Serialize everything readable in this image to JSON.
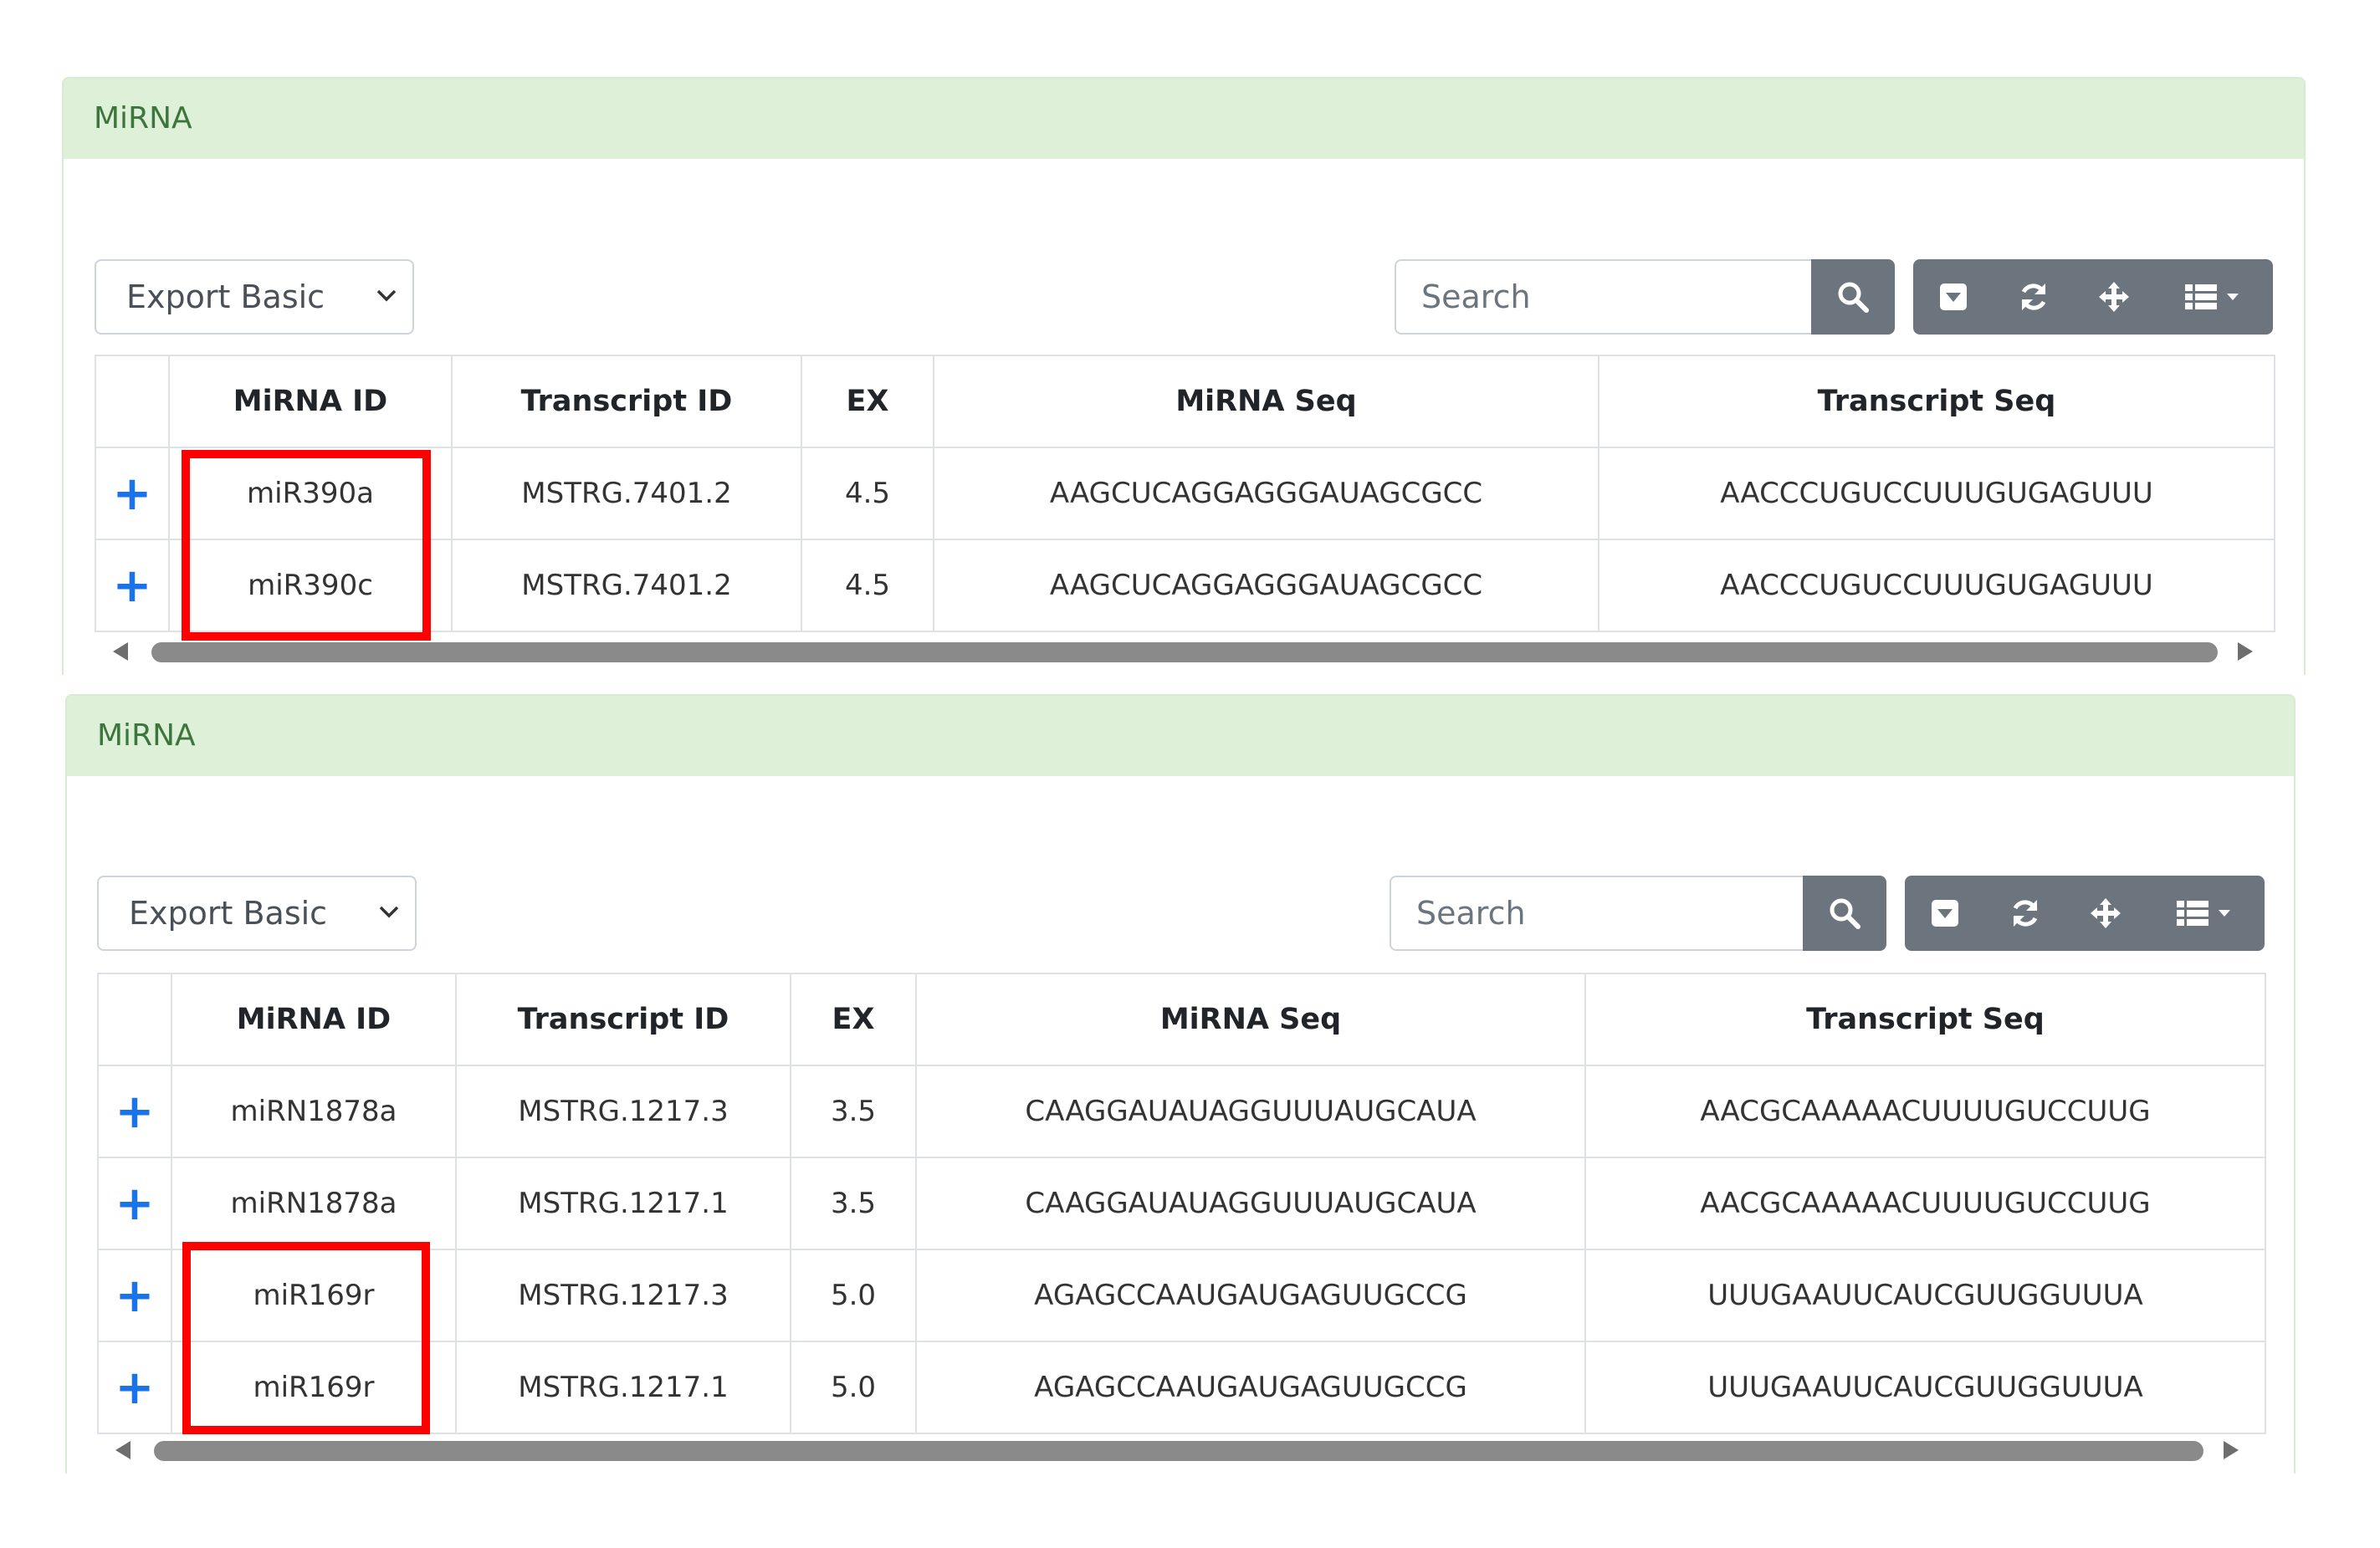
{
  "panels": [
    {
      "title": "MiRNA",
      "export_label": "Export Basic",
      "search_placeholder": "Search",
      "columns": [
        "MiRNA ID",
        "Transcript ID",
        "EX",
        "MiRNA Seq",
        "Transcript Seq"
      ],
      "rows": [
        {
          "expand": "+",
          "mirna_id": "miR390a",
          "transcript_id": "MSTRG.7401.2",
          "ex": "4.5",
          "mirna_seq": "AAGCUCAGGAGGGAUAGCGCC",
          "transcript_seq": "AACCCUGUCCUUUGUGAGUUU"
        },
        {
          "expand": "+",
          "mirna_id": "miR390c",
          "transcript_id": "MSTRG.7401.2",
          "ex": "4.5",
          "mirna_seq": "AAGCUCAGGAGGGAUAGCGCC",
          "transcript_seq": "AACCCUGUCCUUUGUGAGUUU"
        }
      ]
    },
    {
      "title": "MiRNA",
      "export_label": "Export Basic",
      "search_placeholder": "Search",
      "columns": [
        "MiRNA ID",
        "Transcript ID",
        "EX",
        "MiRNA Seq",
        "Transcript Seq"
      ],
      "rows": [
        {
          "expand": "+",
          "mirna_id": "miRN1878a",
          "transcript_id": "MSTRG.1217.3",
          "ex": "3.5",
          "mirna_seq": "CAAGGAUAUAGGUUUAUGCAUA",
          "transcript_seq": "AACGCAAAAACUUUUGUCCUUG"
        },
        {
          "expand": "+",
          "mirna_id": "miRN1878a",
          "transcript_id": "MSTRG.1217.1",
          "ex": "3.5",
          "mirna_seq": "CAAGGAUAUAGGUUUAUGCAUA",
          "transcript_seq": "AACGCAAAAACUUUUGUCCUUG"
        },
        {
          "expand": "+",
          "mirna_id": "miR169r",
          "transcript_id": "MSTRG.1217.3",
          "ex": "5.0",
          "mirna_seq": "AGAGCCAAUGAUGAGUUGCCG",
          "transcript_seq": "UUUGAAUUCAUCGUUGGUUUA"
        },
        {
          "expand": "+",
          "mirna_id": "miR169r",
          "transcript_id": "MSTRG.1217.1",
          "ex": "5.0",
          "mirna_seq": "AGAGCCAAUGAUGAGUUGCCG",
          "transcript_seq": "UUUGAAUUCAUCGUUGGUUUA"
        }
      ]
    }
  ],
  "icons": {
    "search": "search-icon",
    "toggle": "caret-square-down-icon",
    "refresh": "refresh-icon",
    "fullscreen": "move-arrows-icon",
    "columns": "list-columns-icon"
  },
  "colors": {
    "header_bg": "#dff0d8",
    "header_text": "#3c763d",
    "button_bg": "#6c757d",
    "expand_icon": "#1a73e8",
    "highlight": "#ff0000"
  }
}
